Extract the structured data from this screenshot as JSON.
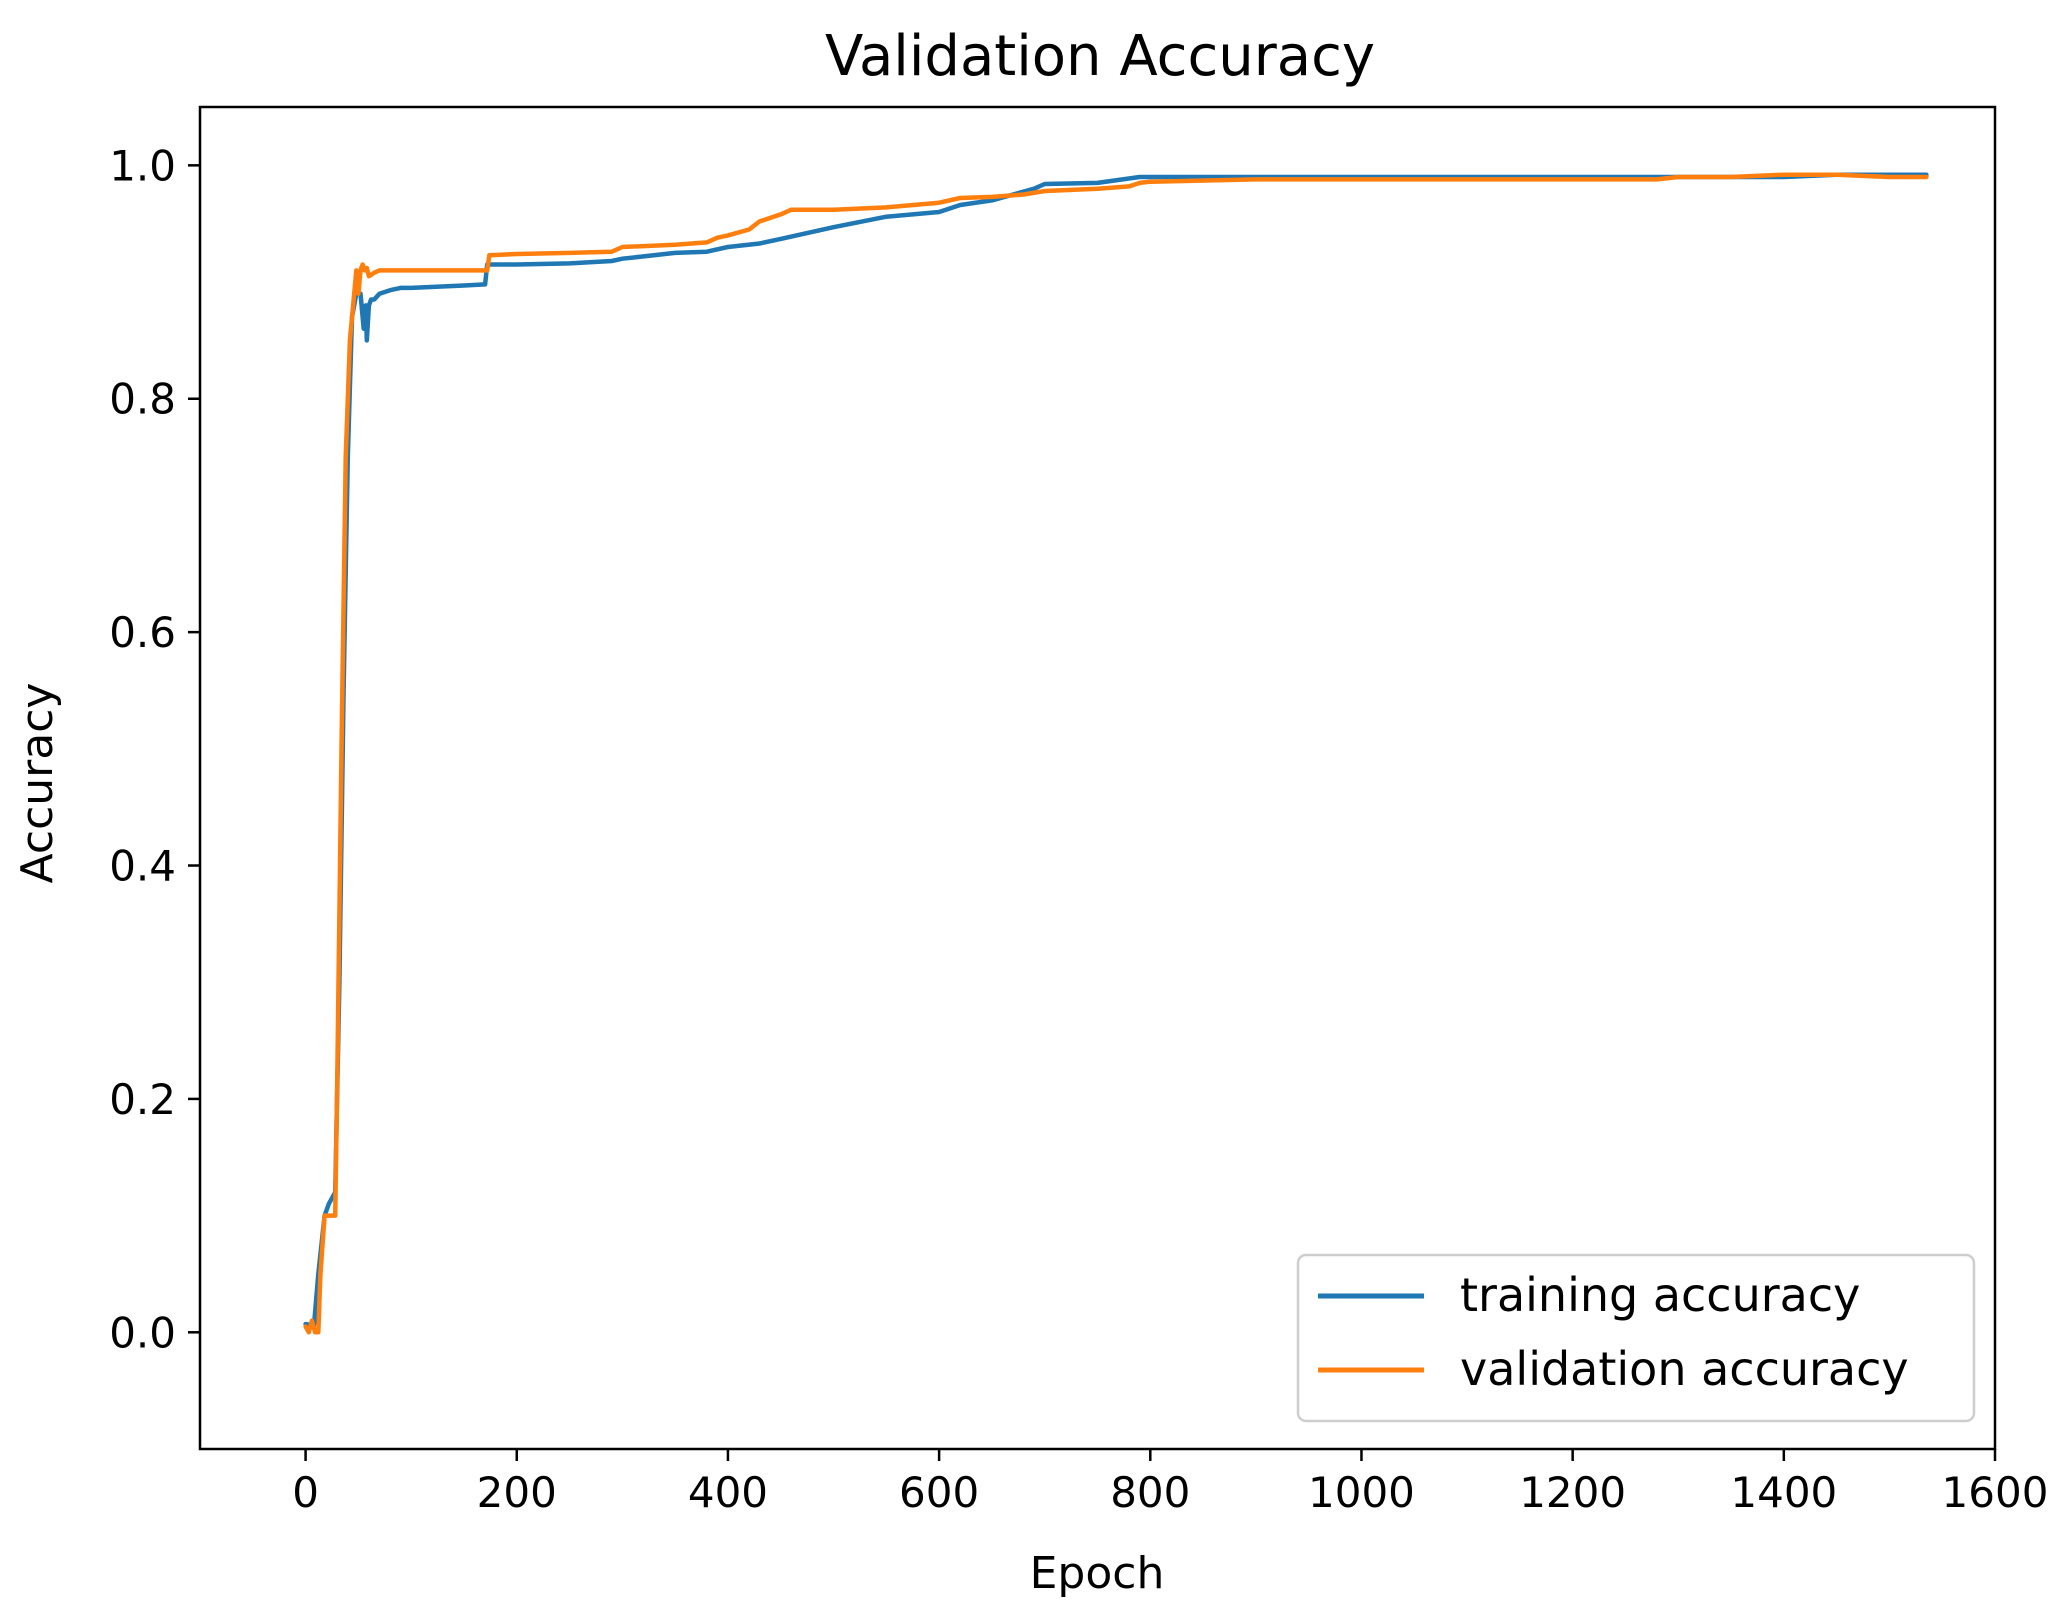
{
  "chart_data": {
    "type": "line",
    "title": "Validation Accuracy",
    "xlabel": "Epoch",
    "ylabel": "Accuracy",
    "xlim": [
      -100,
      1600
    ],
    "ylim": [
      -0.1,
      1.05
    ],
    "xticks": [
      0,
      200,
      400,
      600,
      800,
      1000,
      1200,
      1400,
      1600
    ],
    "yticks": [
      0.0,
      0.2,
      0.4,
      0.6,
      0.8,
      1.0
    ],
    "xtick_labels": [
      "0",
      "200",
      "400",
      "600",
      "800",
      "1000",
      "1200",
      "1400",
      "1600"
    ],
    "ytick_labels": [
      "0.0",
      "0.2",
      "0.4",
      "0.6",
      "0.8",
      "1.0"
    ],
    "grid": false,
    "legend_position": "lower-right",
    "series": [
      {
        "name": "training accuracy",
        "color": "#1f77b4",
        "x": [
          0,
          8,
          12,
          18,
          22,
          28,
          32,
          36,
          40,
          44,
          48,
          52,
          55,
          57,
          58,
          60,
          62,
          65,
          70,
          80,
          90,
          100,
          150,
          170,
          172,
          200,
          250,
          290,
          300,
          350,
          380,
          400,
          430,
          450,
          500,
          550,
          600,
          620,
          650,
          690,
          700,
          750,
          790,
          800,
          900,
          1000,
          1100,
          1200,
          1300,
          1400,
          1450,
          1535
        ],
        "y": [
          0.007,
          0.006,
          0.05,
          0.1,
          0.11,
          0.12,
          0.3,
          0.55,
          0.75,
          0.87,
          0.89,
          0.89,
          0.86,
          0.88,
          0.85,
          0.88,
          0.885,
          0.885,
          0.89,
          0.893,
          0.895,
          0.895,
          0.897,
          0.898,
          0.915,
          0.915,
          0.916,
          0.918,
          0.92,
          0.925,
          0.926,
          0.93,
          0.933,
          0.937,
          0.947,
          0.956,
          0.96,
          0.966,
          0.97,
          0.98,
          0.984,
          0.985,
          0.99,
          0.99,
          0.99,
          0.99,
          0.99,
          0.99,
          0.99,
          0.99,
          0.992,
          0.992
        ]
      },
      {
        "name": "validation accuracy",
        "color": "#ff7f0e",
        "x": [
          0,
          3,
          6,
          9,
          12,
          14,
          18,
          22,
          26,
          28,
          30,
          34,
          38,
          42,
          46,
          48,
          50,
          52,
          54,
          56,
          58,
          60,
          65,
          70,
          100,
          150,
          172,
          174,
          200,
          250,
          290,
          300,
          350,
          380,
          390,
          400,
          420,
          430,
          440,
          450,
          460,
          500,
          550,
          600,
          620,
          650,
          680,
          700,
          750,
          780,
          790,
          800,
          900,
          1000,
          1100,
          1200,
          1280,
          1300,
          1350,
          1400,
          1450,
          1500,
          1535
        ],
        "y": [
          0.005,
          0.0,
          0.01,
          0.0,
          0.0,
          0.05,
          0.1,
          0.1,
          0.1,
          0.1,
          0.22,
          0.5,
          0.75,
          0.85,
          0.89,
          0.91,
          0.89,
          0.91,
          0.915,
          0.91,
          0.912,
          0.905,
          0.908,
          0.91,
          0.91,
          0.91,
          0.91,
          0.923,
          0.924,
          0.925,
          0.926,
          0.93,
          0.932,
          0.934,
          0.938,
          0.94,
          0.945,
          0.952,
          0.955,
          0.958,
          0.962,
          0.962,
          0.964,
          0.968,
          0.972,
          0.973,
          0.975,
          0.978,
          0.98,
          0.982,
          0.985,
          0.986,
          0.988,
          0.988,
          0.988,
          0.988,
          0.988,
          0.99,
          0.99,
          0.992,
          0.992,
          0.99,
          0.99
        ]
      }
    ]
  }
}
